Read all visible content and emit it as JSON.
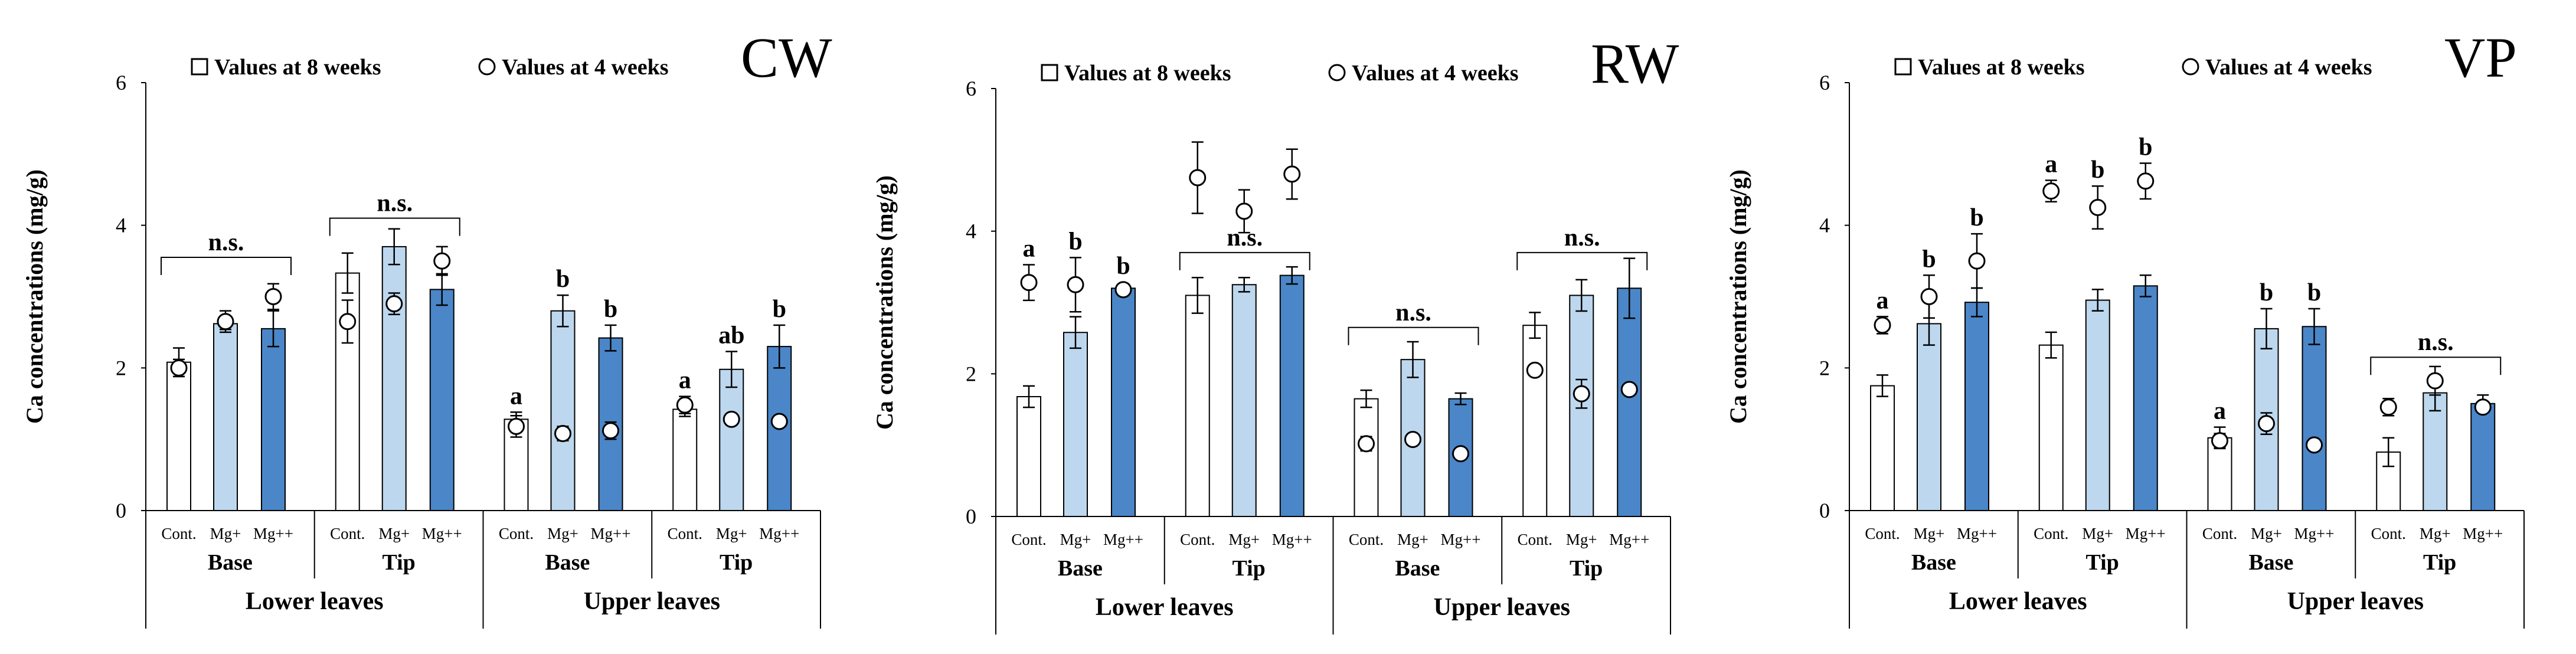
{
  "colors": {
    "cont": "#ffffff",
    "mg1": "#bdd7ee",
    "mg2": "#4a86c8",
    "stroke": "#000000"
  },
  "shared": {
    "legend_square": "Values at 8 weeks",
    "legend_circle": "Values at 4 weeks",
    "treatments": [
      "Cont.",
      "Mg+",
      "Mg++"
    ],
    "parts": [
      "Base",
      "Tip"
    ],
    "leaf_groups": [
      "Lower leaves",
      "Upper leaves"
    ]
  },
  "chart_data": [
    {
      "type": "bar",
      "title": "CW",
      "ylabel": "Ca concentrations (mg/g)",
      "xlabel": "",
      "ylim": [
        0,
        6
      ],
      "yticks": [
        0,
        2,
        4,
        6
      ],
      "categories": [
        "Lower leaves Base",
        "Lower leaves Tip",
        "Upper leaves Base",
        "Upper leaves Tip"
      ],
      "series": [
        {
          "name": "Cont.",
          "values": [
            2.08,
            3.33,
            1.28,
            1.42
          ],
          "errors": [
            0.2,
            0.28,
            0.1,
            0.1
          ]
        },
        {
          "name": "Mg+",
          "values": [
            2.62,
            3.7,
            2.8,
            1.98
          ],
          "errors": [
            0.08,
            0.25,
            0.22,
            0.25
          ]
        },
        {
          "name": "Mg++",
          "values": [
            2.55,
            3.1,
            2.42,
            2.3
          ],
          "errors": [
            0.25,
            0.22,
            0.18,
            0.3
          ]
        }
      ],
      "week4": [
        {
          "values": [
            2.0,
            2.65,
            3.0
          ],
          "errors": [
            0.12,
            0.15,
            0.18
          ]
        },
        {
          "values": [
            2.65,
            2.9,
            3.5
          ],
          "errors": [
            0.3,
            0.15,
            0.2
          ]
        },
        {
          "values": [
            1.18,
            1.08,
            1.12
          ],
          "errors": [
            0.15,
            0.1,
            0.12
          ]
        },
        {
          "values": [
            1.48,
            1.28,
            1.25
          ],
          "errors": [
            0.12,
            0.08,
            0.06
          ]
        }
      ],
      "letters": [
        {
          "text": "n.s.",
          "type": "bracket",
          "y": 3.55
        },
        {
          "text": "n.s.",
          "type": "bracket",
          "y": 4.1
        },
        {
          "text": "",
          "type": "letters",
          "items": [
            "a",
            "b",
            "b"
          ]
        },
        {
          "text": "",
          "type": "letters",
          "items": [
            "a",
            "ab",
            "b"
          ]
        }
      ]
    },
    {
      "type": "bar",
      "title": "RW",
      "ylabel": "Ca concentrations (mg/g)",
      "xlabel": "",
      "ylim": [
        0,
        6
      ],
      "yticks": [
        0,
        2,
        4,
        6
      ],
      "categories": [
        "Lower leaves Base",
        "Lower leaves Tip",
        "Upper leaves Base",
        "Upper leaves Tip"
      ],
      "series": [
        {
          "name": "Cont.",
          "values": [
            1.68,
            3.1,
            1.65,
            2.68
          ],
          "errors": [
            0.15,
            0.25,
            0.12,
            0.18
          ]
        },
        {
          "name": "Mg+",
          "values": [
            2.58,
            3.25,
            2.2,
            3.1
          ],
          "errors": [
            0.22,
            0.1,
            0.25,
            0.22
          ]
        },
        {
          "name": "Mg++",
          "values": [
            3.2,
            3.38,
            1.65,
            3.2
          ],
          "errors": [
            0.05,
            0.12,
            0.08,
            0.42
          ]
        }
      ],
      "week4": [
        {
          "values": [
            3.28,
            3.25,
            3.18
          ],
          "errors": [
            0.25,
            0.38,
            0.08
          ]
        },
        {
          "values": [
            4.75,
            4.28,
            4.8
          ],
          "errors": [
            0.5,
            0.3,
            0.35
          ]
        },
        {
          "values": [
            1.02,
            1.08,
            0.88
          ],
          "errors": [
            0.1,
            0.0,
            0.0
          ]
        },
        {
          "values": [
            2.05,
            1.72,
            1.78
          ],
          "errors": [
            0.05,
            0.2,
            0.0
          ]
        }
      ],
      "letters": [
        {
          "text": "",
          "type": "letters",
          "items": [
            "a",
            "b",
            "b"
          ]
        },
        {
          "text": "n.s.",
          "type": "bracket",
          "y": 3.7
        },
        {
          "text": "n.s.",
          "type": "bracket",
          "y": 2.65
        },
        {
          "text": "n.s.",
          "type": "bracket",
          "y": 3.7
        }
      ]
    },
    {
      "type": "bar",
      "title": "VP",
      "ylabel": "Ca concentrations (mg/g)",
      "xlabel": "",
      "ylim": [
        0,
        6
      ],
      "yticks": [
        0,
        2,
        4,
        6
      ],
      "categories": [
        "Lower leaves Base",
        "Lower leaves Tip",
        "Upper leaves Base",
        "Upper leaves Tip"
      ],
      "series": [
        {
          "name": "Cont.",
          "values": [
            1.75,
            2.32,
            1.02,
            0.82
          ],
          "errors": [
            0.15,
            0.18,
            0.15,
            0.2
          ]
        },
        {
          "name": "Mg+",
          "values": [
            2.62,
            2.95,
            2.55,
            1.65
          ],
          "errors": [
            0.3,
            0.15,
            0.28,
            0.25
          ]
        },
        {
          "name": "Mg++",
          "values": [
            2.92,
            3.15,
            2.58,
            1.5
          ],
          "errors": [
            0.2,
            0.15,
            0.25,
            0.12
          ]
        }
      ],
      "week4": [
        {
          "values": [
            2.6,
            3.0,
            3.5
          ],
          "errors": [
            0.12,
            0.3,
            0.38
          ]
        },
        {
          "values": [
            4.48,
            4.25,
            4.62
          ],
          "errors": [
            0.15,
            0.3,
            0.25
          ]
        },
        {
          "values": [
            0.98,
            1.22,
            0.92
          ],
          "errors": [
            0.1,
            0.15,
            0.0
          ]
        },
        {
          "values": [
            1.45,
            1.82,
            1.45
          ],
          "errors": [
            0.12,
            0.2,
            0.05
          ]
        }
      ],
      "letters": [
        {
          "text": "",
          "type": "letters",
          "items": [
            "a",
            "b",
            "b"
          ]
        },
        {
          "text": "",
          "type": "letters",
          "items": [
            "a",
            "b",
            "b"
          ]
        },
        {
          "text": "",
          "type": "letters",
          "items": [
            "a",
            "b",
            "b"
          ]
        },
        {
          "text": "n.s.",
          "type": "bracket",
          "y": 2.15
        }
      ]
    }
  ]
}
